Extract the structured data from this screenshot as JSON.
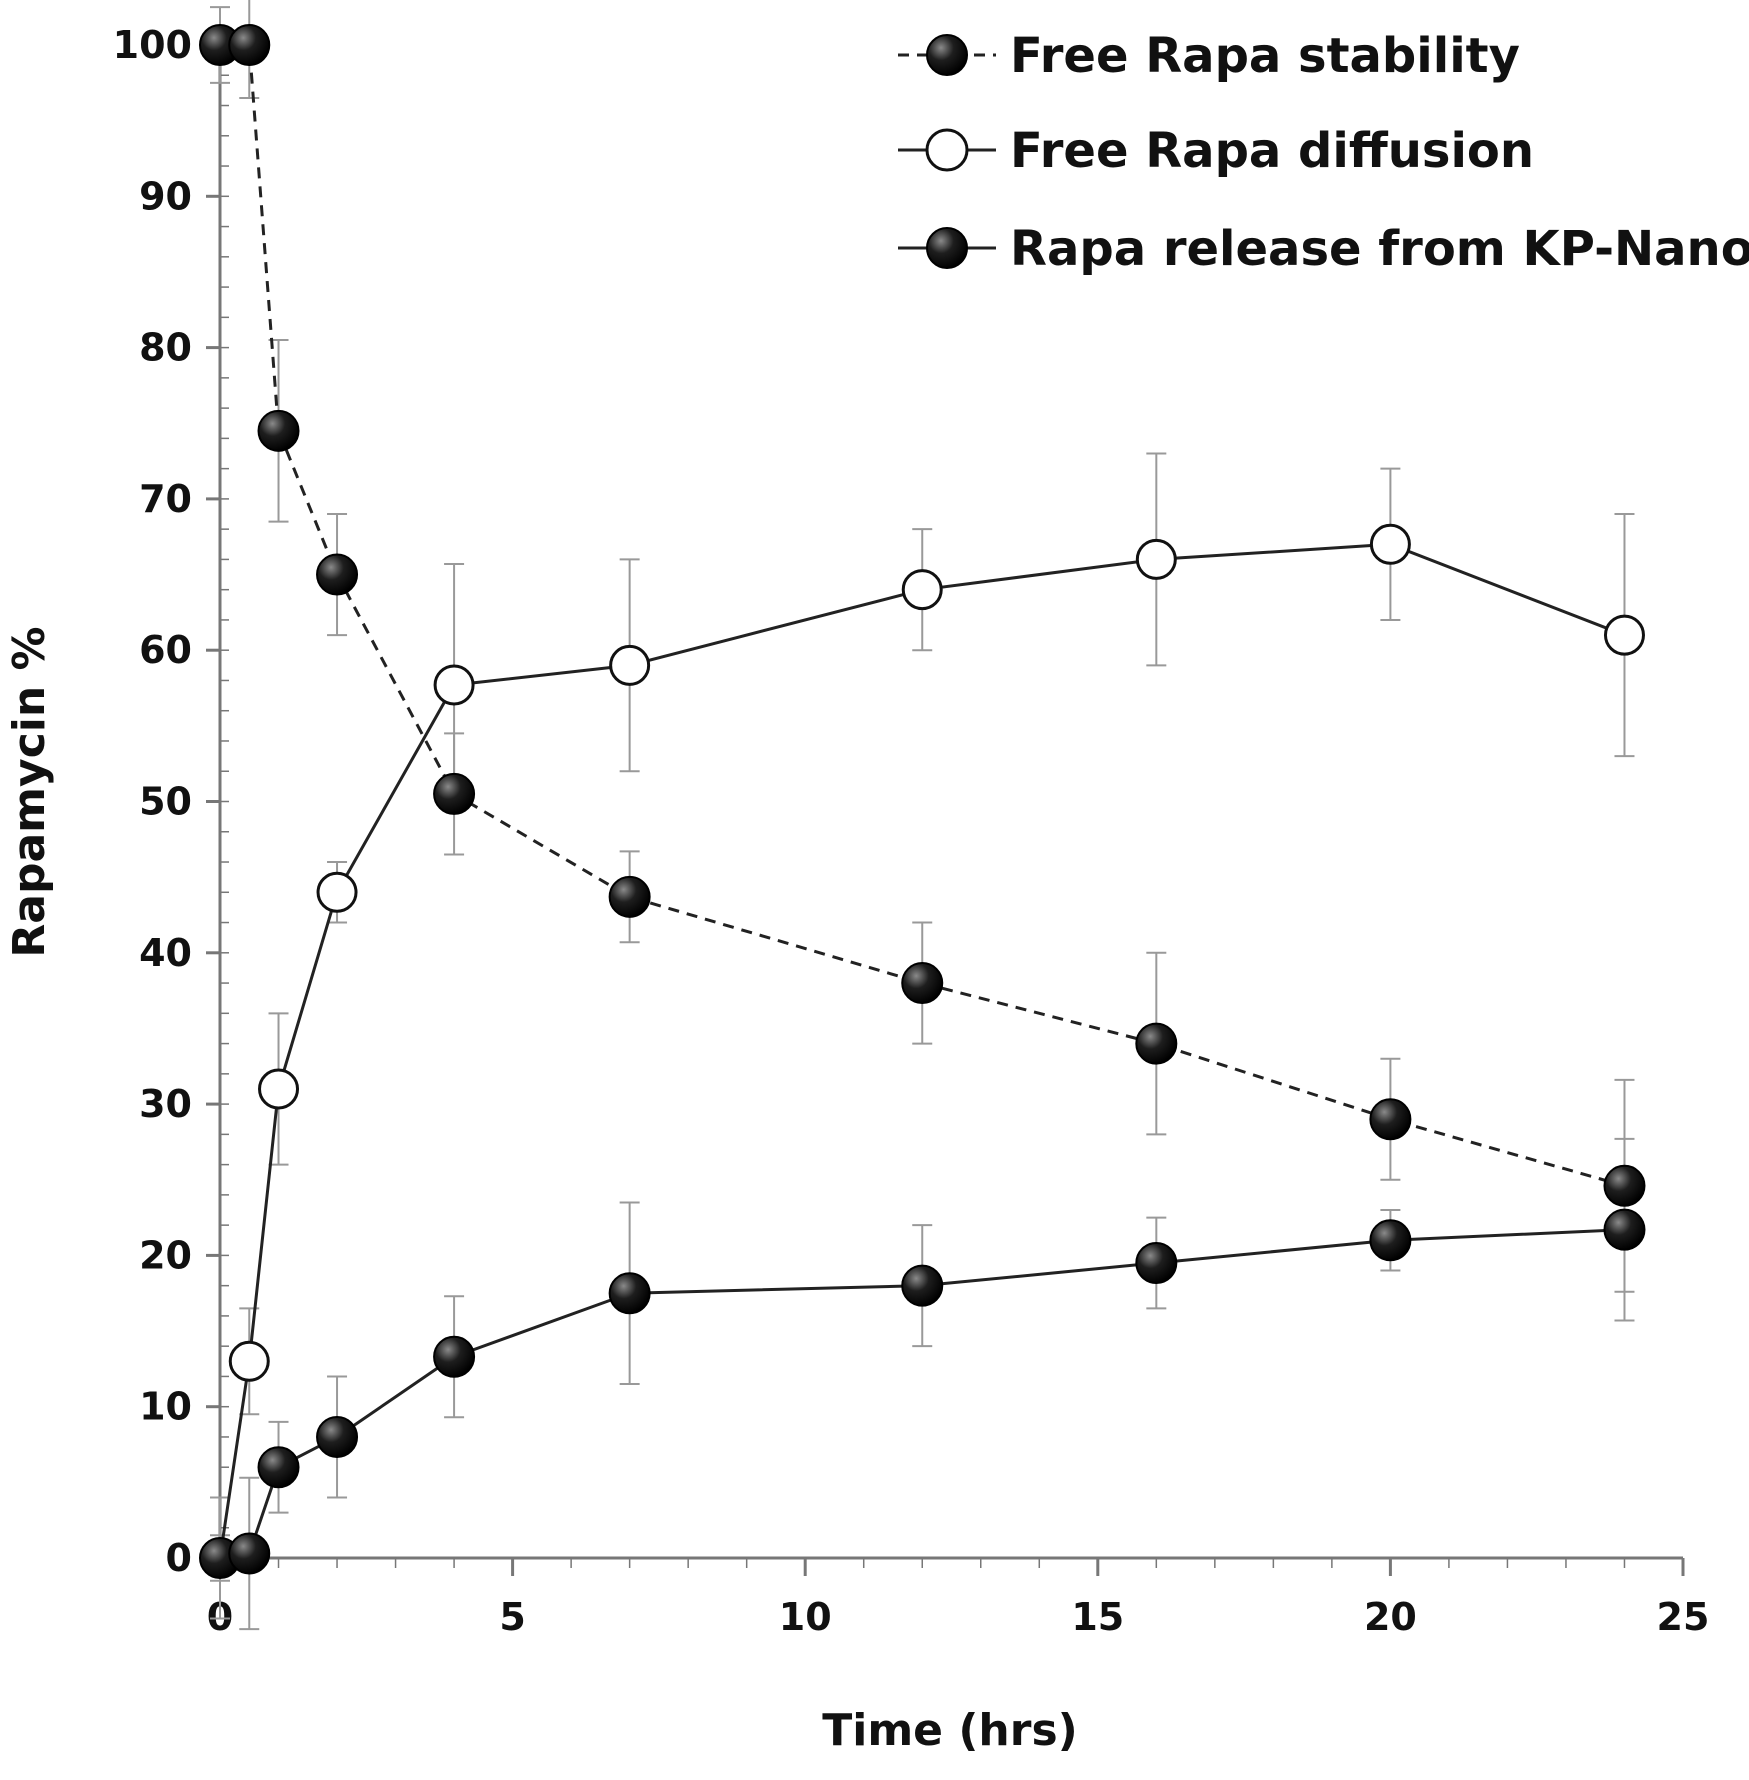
{
  "chart_data": {
    "type": "line",
    "title": "",
    "xlabel": "Time (hrs)",
    "ylabel": "Rapamycin %",
    "xlim": [
      0,
      25
    ],
    "ylim": [
      0,
      100
    ],
    "xticks": [
      0,
      5,
      10,
      15,
      20,
      25
    ],
    "yticks": [
      0,
      10,
      20,
      30,
      40,
      50,
      60,
      70,
      80,
      90,
      100
    ],
    "x_minor_step": 1,
    "y_minor_step": 2,
    "grid": false,
    "legend_position": "top-right",
    "series": [
      {
        "name": "Free Rapa stability",
        "line_style": "dashed",
        "marker": "filled-circle",
        "x": [
          0,
          0.5,
          1,
          2,
          4,
          7,
          12,
          16,
          20,
          24
        ],
        "y": [
          100,
          100,
          74.5,
          65,
          50.5,
          43.7,
          38,
          34,
          29,
          24.6
        ],
        "err": [
          2.5,
          3.5,
          6,
          4,
          4,
          3,
          4,
          6,
          4,
          7
        ]
      },
      {
        "name": "Free Rapa diffusion",
        "line_style": "solid",
        "marker": "open-circle",
        "x": [
          0,
          0.5,
          1,
          2,
          4,
          7,
          12,
          16,
          20,
          24
        ],
        "y": [
          0,
          13,
          31,
          44,
          57.7,
          59,
          64,
          66,
          67,
          61
        ],
        "err": [
          4,
          3.5,
          5,
          2,
          8,
          7,
          4,
          7,
          5,
          8
        ]
      },
      {
        "name": "Rapa release from KP-Nano",
        "line_style": "solid",
        "marker": "filled-circle",
        "x": [
          0,
          0.5,
          1,
          2,
          4,
          7,
          12,
          16,
          20,
          24
        ],
        "y": [
          0,
          0.3,
          6,
          8,
          13.3,
          17.5,
          18,
          19.5,
          21,
          21.7
        ],
        "err": [
          1.5,
          5,
          3,
          4,
          4,
          6,
          4,
          3,
          2,
          6
        ]
      }
    ],
    "colors": {
      "axis": "#777777",
      "line": "#222222",
      "marker_filled": "#111111",
      "marker_open_fill": "#ffffff",
      "error_bar": "#999999",
      "text": "#111111"
    }
  }
}
